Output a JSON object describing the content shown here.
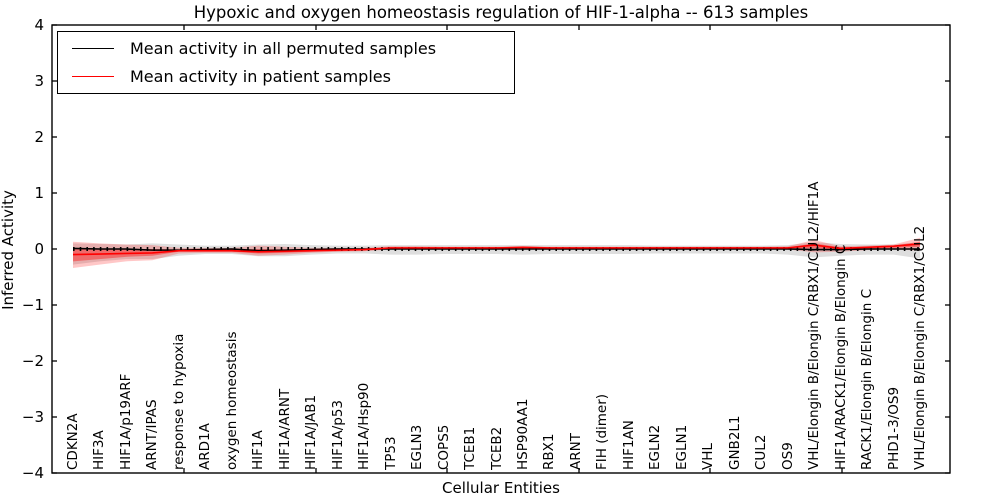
{
  "title": "Hypoxic and oxygen homeostasis regulation of HIF-1-alpha -- 613 samples",
  "axes": {
    "ylabel": "Inferred Activity",
    "xlabel": "Cellular Entities",
    "ytick_labels": [
      "4",
      "3",
      "2",
      "1",
      "0",
      "−1",
      "−2",
      "−3",
      "−4"
    ],
    "ytick_values": [
      4,
      3,
      2,
      1,
      0,
      -1,
      -2,
      -3,
      -4
    ],
    "ylim": [
      -4,
      4
    ],
    "frame_color": "#000000"
  },
  "legend": {
    "items": [
      {
        "label": "Mean activity in all permuted samples",
        "color": "#000000"
      },
      {
        "label": "Mean activity in patient samples",
        "color": "#ff0000"
      }
    ]
  },
  "chart_data": {
    "type": "line",
    "title": "Hypoxic and oxygen homeostasis regulation of HIF-1-alpha -- 613 samples",
    "xlabel": "Cellular Entities",
    "ylabel": "Inferred Activity",
    "ylim": [
      -4,
      4
    ],
    "grid": false,
    "legend_position": "upper left",
    "zero_line": true,
    "categories": [
      "CDKN2A",
      "HIF3A",
      "HIF1A/p19ARF",
      "ARNT/IPAS",
      "response to hypoxia",
      "ARD1A",
      "oxygen homeostasis",
      "HIF1A",
      "HIF1A/ARNT",
      "HIF1A/JAB1",
      "HIF1A/p53",
      "HIF1A/Hsp90",
      "TP53",
      "EGLN3",
      "COPS5",
      "TCEB1",
      "TCEB2",
      "HSP90AA1",
      "RBX1",
      "ARNT",
      "FIH (dimer)",
      "HIF1AN",
      "EGLN2",
      "EGLN1",
      "VHL",
      "GNB2L1",
      "CUL2",
      "OS9",
      "VHL/Elongin B/Elongin C/RBX1/CUL2/HIF1A",
      "HIF1A/RACK1/Elongin B/Elongin C",
      "RACK1/Elongin B/Elongin C",
      "PHD1-3/OS9",
      "VHL/Elongin B/Elongin C/RBX1/CUL2"
    ],
    "series": [
      {
        "name": "Mean activity in all permuted samples",
        "color": "#000000",
        "values": [
          0.01,
          0.0,
          0.0,
          -0.02,
          -0.02,
          -0.01,
          0.0,
          -0.03,
          -0.02,
          -0.01,
          0.0,
          0.0,
          0.0,
          0.0,
          0.0,
          0.0,
          0.0,
          0.0,
          0.0,
          0.0,
          0.0,
          0.0,
          0.0,
          0.0,
          0.0,
          0.0,
          0.0,
          0.0,
          -0.01,
          -0.01,
          0.0,
          0.0,
          0.0
        ]
      },
      {
        "name": "Mean activity in patient samples",
        "color": "#ff0000",
        "values": [
          -0.1,
          -0.09,
          -0.08,
          -0.07,
          -0.03,
          -0.03,
          -0.03,
          -0.05,
          -0.04,
          -0.03,
          -0.02,
          -0.01,
          0.02,
          0.02,
          0.02,
          0.02,
          0.02,
          0.03,
          0.02,
          0.02,
          0.02,
          0.02,
          0.02,
          0.02,
          0.02,
          0.02,
          0.02,
          0.02,
          0.07,
          0.01,
          0.03,
          0.05,
          0.09
        ]
      }
    ],
    "bands": [
      {
        "name": "permuted-samples-range",
        "color": "rgba(0,0,0,0.13)",
        "top": [
          0.1,
          0.09,
          0.08,
          0.1,
          0.08,
          0.06,
          0.06,
          0.08,
          0.09,
          0.07,
          0.06,
          0.06,
          0.07,
          0.07,
          0.07,
          0.07,
          0.07,
          0.07,
          0.07,
          0.07,
          0.07,
          0.07,
          0.06,
          0.06,
          0.06,
          0.06,
          0.06,
          0.07,
          0.12,
          0.09,
          0.08,
          0.08,
          0.12
        ],
        "bottom": [
          -0.28,
          -0.22,
          -0.18,
          -0.18,
          -0.12,
          -0.09,
          -0.09,
          -0.13,
          -0.13,
          -0.1,
          -0.08,
          -0.08,
          -0.1,
          -0.1,
          -0.09,
          -0.09,
          -0.09,
          -0.1,
          -0.09,
          -0.09,
          -0.09,
          -0.09,
          -0.08,
          -0.08,
          -0.08,
          -0.08,
          -0.08,
          -0.1,
          -0.15,
          -0.12,
          -0.1,
          -0.1,
          -0.17
        ]
      },
      {
        "name": "patient-samples-range-outer",
        "color": "rgba(255,0,0,0.22)",
        "top": [
          0.13,
          0.1,
          0.08,
          0.07,
          0.02,
          0.02,
          0.02,
          0.06,
          0.04,
          0.02,
          0.02,
          0.02,
          0.05,
          0.05,
          0.04,
          0.04,
          0.04,
          0.05,
          0.04,
          0.04,
          0.04,
          0.04,
          0.04,
          0.04,
          0.04,
          0.04,
          0.04,
          0.05,
          0.16,
          0.05,
          0.06,
          0.08,
          0.2
        ],
        "bottom": [
          -0.34,
          -0.28,
          -0.22,
          -0.2,
          -0.08,
          -0.07,
          -0.07,
          -0.12,
          -0.1,
          -0.07,
          -0.05,
          -0.04,
          -0.01,
          -0.01,
          -0.01,
          -0.01,
          -0.01,
          -0.01,
          -0.01,
          -0.01,
          -0.01,
          -0.01,
          -0.01,
          -0.01,
          -0.01,
          -0.01,
          -0.01,
          -0.01,
          -0.06,
          -0.05,
          -0.02,
          -0.01,
          -0.03
        ]
      },
      {
        "name": "patient-samples-range-inner",
        "color": "rgba(255,0,0,0.38)",
        "top": [
          0.02,
          0.01,
          0.0,
          0.0,
          -0.01,
          -0.01,
          -0.01,
          0.0,
          -0.01,
          -0.01,
          0.0,
          0.0,
          0.03,
          0.03,
          0.03,
          0.03,
          0.03,
          0.04,
          0.03,
          0.03,
          0.03,
          0.03,
          0.03,
          0.03,
          0.03,
          0.03,
          0.03,
          0.03,
          0.1,
          0.03,
          0.04,
          0.06,
          0.13
        ],
        "bottom": [
          -0.22,
          -0.18,
          -0.14,
          -0.12,
          -0.05,
          -0.05,
          -0.05,
          -0.08,
          -0.07,
          -0.05,
          -0.04,
          -0.03,
          0.0,
          0.0,
          0.0,
          0.0,
          0.0,
          0.01,
          0.0,
          0.0,
          0.0,
          0.0,
          0.0,
          0.0,
          0.0,
          0.0,
          0.0,
          0.0,
          0.02,
          -0.02,
          0.01,
          0.02,
          0.04
        ]
      }
    ]
  }
}
